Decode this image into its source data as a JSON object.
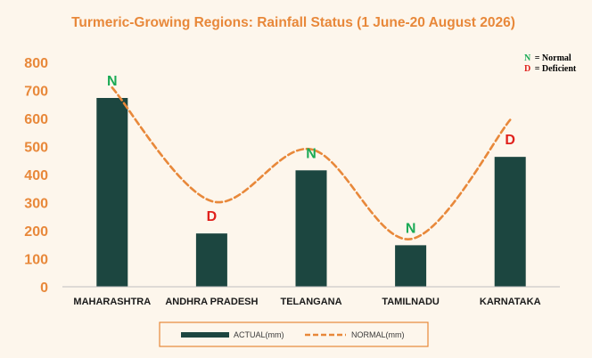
{
  "colors": {
    "background": "#fdf6ec",
    "accent": "#e8883a",
    "bar": "#1c4640",
    "normal_label": "#1aaa55",
    "deficient_label": "#e0201c",
    "baseline": "#bfbfbf",
    "legend_text": "#3a3a3a",
    "category_text": "#1a1a1a"
  },
  "chart_data": {
    "type": "bar",
    "title": "Turmeric-Growing Regions: Rainfall Status (1 June-20 August 2026)",
    "xlabel": "",
    "ylabel": "",
    "categories": [
      "MAHARASHTRA",
      "ANDHRA PRADESH",
      "TELANGANA",
      "TAMILNADU",
      "KARNATAKA"
    ],
    "ylim": [
      0,
      800
    ],
    "yticks": [
      0,
      100,
      200,
      300,
      400,
      500,
      600,
      700,
      800
    ],
    "grid": false,
    "series": [
      {
        "name": "ACTUAL(mm)",
        "type": "bar",
        "values": [
          673,
          190,
          415,
          148,
          463
        ]
      },
      {
        "name": "NORMAL(mm)",
        "type": "line",
        "style": "dashed-smooth",
        "values": [
          710,
          305,
          490,
          170,
          595
        ]
      }
    ],
    "status_labels": [
      "N",
      "D",
      "N",
      "N",
      "D"
    ],
    "legend_position": "bottom",
    "annotation": {
      "items": [
        {
          "code": "N",
          "text": "= Normal"
        },
        {
          "code": "D",
          "text": "= Deficient"
        }
      ],
      "position": "top-right"
    }
  }
}
